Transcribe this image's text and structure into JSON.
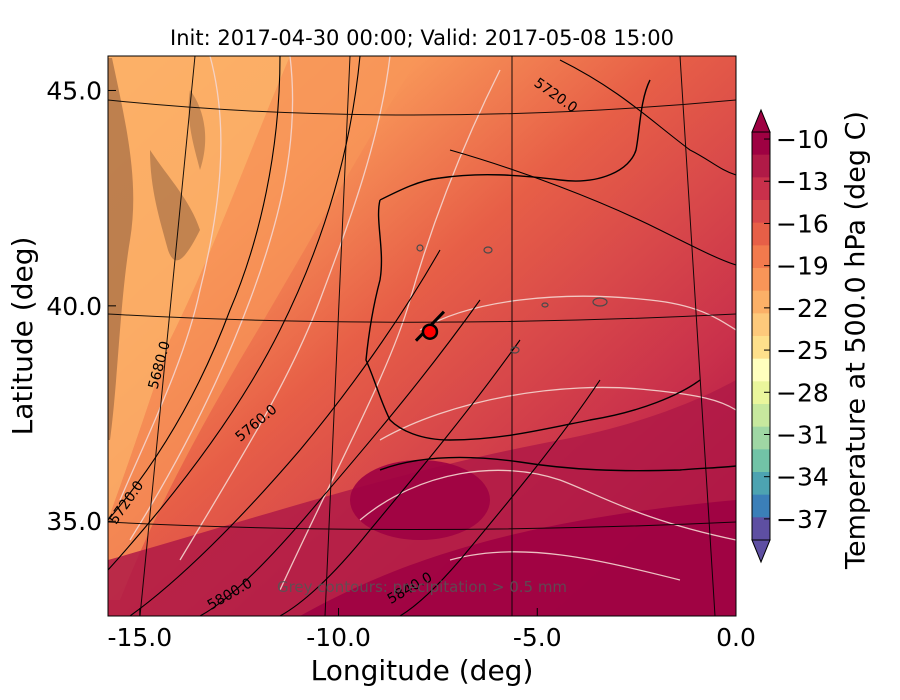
{
  "chart_data": {
    "type": "heatmap",
    "title": "Init: 2017-04-30 00:00; Valid: 2017-05-08 15:00",
    "xlabel": "Longitude (deg)",
    "ylabel": "Latitude (deg)",
    "xlim": [
      -15.8,
      0.0
    ],
    "ylim": [
      32.8,
      45.8
    ],
    "x_ticks": [
      "-15.0",
      "-10.0",
      "-5.0",
      "0.0"
    ],
    "x_tick_values": [
      -15.0,
      -10.0,
      -5.0,
      0.0
    ],
    "y_ticks": [
      "45.0",
      "40.0",
      "35.0"
    ],
    "y_tick_values": [
      45.0,
      40.0,
      35.0
    ],
    "colorbar": {
      "label": "Temperature at 500.0 hPa (deg C)",
      "min": -38.5,
      "max": -9.5,
      "extend": "both",
      "ticks": [
        "−10",
        "−13",
        "−16",
        "−19",
        "−22",
        "−25",
        "−28",
        "−31",
        "−34",
        "−37"
      ],
      "tick_values": [
        -10,
        -13,
        -16,
        -19,
        -22,
        -25,
        -28,
        -31,
        -34,
        -37
      ],
      "colormap": "Spectral",
      "colors_warm_to_cold": [
        "#9e0142",
        "#b01a47",
        "#c9304b",
        "#d8484a",
        "#e75f47",
        "#f27a4d",
        "#f89558",
        "#fbb067",
        "#fdc97b",
        "#fee08b",
        "#ffffbe",
        "#eaf69c",
        "#c7e89e",
        "#9fd7a4",
        "#72c3a7",
        "#4da3b1",
        "#3b7fb8",
        "#5e4fa2"
      ]
    },
    "contour_labels": [
      "5720.0",
      "5680.0",
      "5760.0",
      "5720.0",
      "5800.0",
      "5840.0"
    ],
    "annotation": "Grey contours: precipitation > 0.5 mm",
    "marker": {
      "lon": -7.7,
      "lat": 39.4,
      "color": "#ff0000"
    }
  }
}
